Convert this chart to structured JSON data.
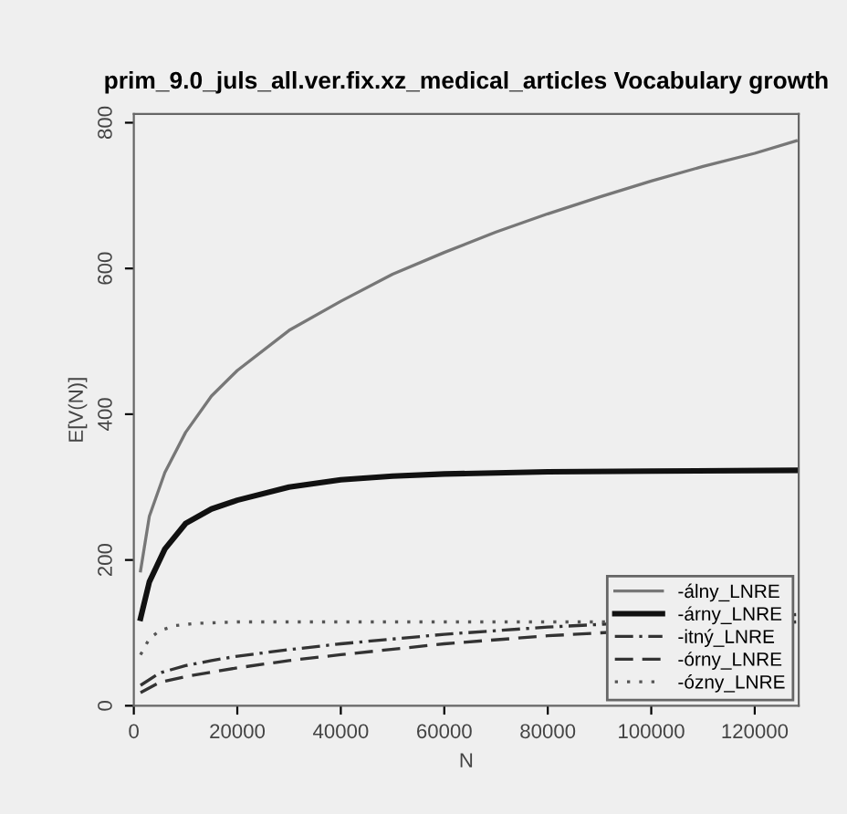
{
  "chart_data": {
    "type": "line",
    "title": "prim_9.0_juls_all.ver.fix.xz_medical_articles Vocabulary growth",
    "xlabel": "N",
    "ylabel": "E[V(N)]",
    "xlim": [
      0,
      128500
    ],
    "ylim": [
      0,
      812
    ],
    "xticks": [
      0,
      20000,
      40000,
      60000,
      80000,
      100000,
      120000
    ],
    "yticks": [
      0,
      200,
      400,
      600,
      800
    ],
    "grid": false,
    "legend": "bottom right",
    "marker": "none",
    "series": [
      {
        "name": "-álny_LNRE",
        "color": "#777777",
        "line_style": "solid",
        "x": [
          1300,
          3000,
          6000,
          10000,
          15000,
          20000,
          30000,
          40000,
          50000,
          60000,
          70000,
          80000,
          90000,
          100000,
          110000,
          120000,
          128000
        ],
        "values": [
          185,
          260,
          320,
          375,
          425,
          460,
          515,
          555,
          592,
          622,
          650,
          675,
          698,
          720,
          740,
          758,
          775
        ]
      },
      {
        "name": "-árny_LNRE",
        "color": "#111111",
        "line_style": "solid",
        "x": [
          1300,
          3000,
          6000,
          10000,
          15000,
          20000,
          30000,
          40000,
          50000,
          60000,
          80000,
          100000,
          128000
        ],
        "values": [
          120,
          170,
          215,
          250,
          270,
          282,
          300,
          310,
          315,
          318,
          321,
          322,
          323
        ]
      },
      {
        "name": "-itný_LNRE",
        "color": "#333333",
        "line_style": "dashdot",
        "x": [
          1300,
          5000,
          10000,
          15000,
          20000,
          30000,
          40000,
          60000,
          80000,
          128000
        ],
        "values": [
          28,
          45,
          55,
          62,
          68,
          77,
          85,
          98,
          108,
          125
        ]
      },
      {
        "name": "-órny_LNRE",
        "color": "#333333",
        "line_style": "dashed",
        "x": [
          1300,
          5000,
          10000,
          15000,
          20000,
          30000,
          40000,
          60000,
          80000,
          128000
        ],
        "values": [
          18,
          32,
          40,
          46,
          52,
          62,
          70,
          85,
          96,
          115
        ]
      },
      {
        "name": "-ózny_LNRE",
        "color": "#555555",
        "line_style": "dotted",
        "x": [
          1300,
          3000,
          5000,
          8000,
          12000,
          20000,
          40000,
          80000,
          128000
        ],
        "values": [
          70,
          92,
          103,
          110,
          113,
          115,
          115,
          115,
          115
        ]
      }
    ]
  }
}
